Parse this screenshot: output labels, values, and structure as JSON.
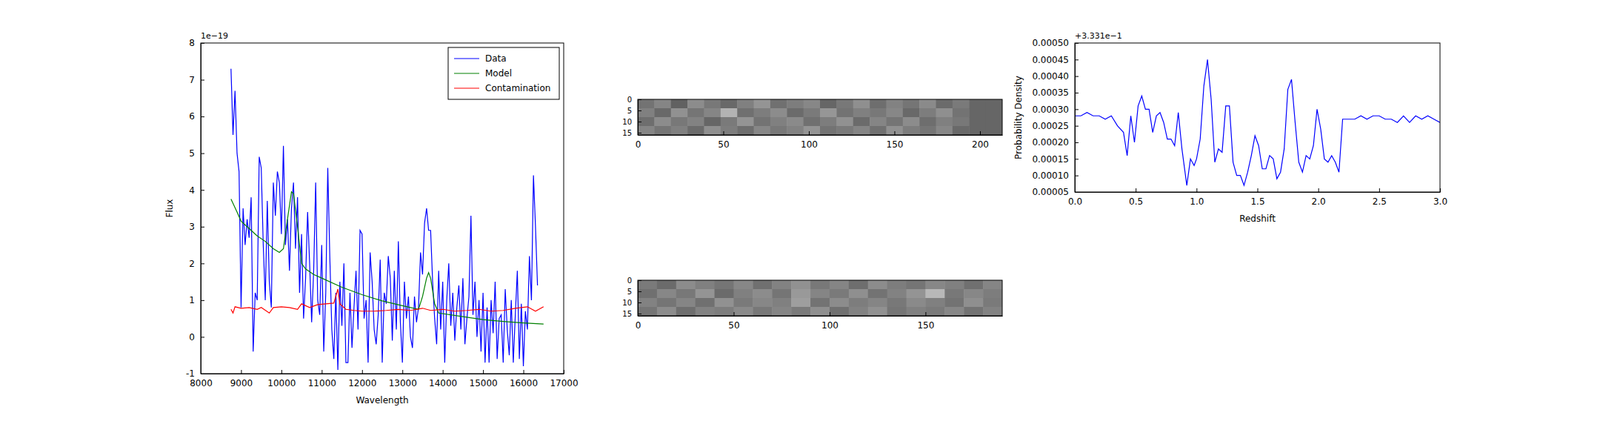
{
  "chart_data": [
    {
      "type": "line",
      "xlabel": "Wavelength",
      "ylabel": "Flux",
      "y_offset_text": "1e−19",
      "xlim": [
        8000,
        17000
      ],
      "xticks": [
        8000,
        9000,
        10000,
        11000,
        12000,
        13000,
        14000,
        15000,
        16000,
        17000
      ],
      "ylim": [
        -1,
        8
      ],
      "yticks": [
        -1,
        0,
        1,
        2,
        3,
        4,
        5,
        6,
        7,
        8
      ],
      "legend": "upper right",
      "series": [
        {
          "name": "Data",
          "color": "#0000ff",
          "x": [
            8750,
            8800,
            8850,
            8900,
            8950,
            9000,
            9050,
            9100,
            9150,
            9200,
            9250,
            9300,
            9350,
            9400,
            9450,
            9500,
            9550,
            9600,
            9650,
            9700,
            9750,
            9800,
            9850,
            9900,
            9950,
            10000,
            10050,
            10100,
            10150,
            10200,
            10250,
            10300,
            10350,
            10400,
            10450,
            10500,
            10550,
            10600,
            10650,
            10700,
            10750,
            10800,
            10850,
            10900,
            10950,
            11000,
            11050,
            11100,
            11150,
            11200,
            11250,
            11300,
            11350,
            11400,
            11450,
            11500,
            11550,
            11600,
            11650,
            11700,
            11750,
            11800,
            11850,
            11900,
            11950,
            12000,
            12050,
            12100,
            12150,
            12200,
            12250,
            12300,
            12350,
            12400,
            12450,
            12500,
            12550,
            12600,
            12650,
            12700,
            12750,
            12800,
            12850,
            12900,
            12950,
            13000,
            13050,
            13100,
            13150,
            13200,
            13250,
            13300,
            13350,
            13400,
            13450,
            13500,
            13550,
            13600,
            13650,
            13700,
            13750,
            13800,
            13850,
            13900,
            13950,
            14000,
            14050,
            14100,
            14150,
            14200,
            14250,
            14300,
            14350,
            14400,
            14450,
            14500,
            14550,
            14600,
            14650,
            14700,
            14750,
            14800,
            14850,
            14900,
            14950,
            15000,
            15050,
            15100,
            15150,
            15200,
            15250,
            15300,
            15350,
            15400,
            15450,
            15500,
            15550,
            15600,
            15650,
            15700,
            15750,
            15800,
            15850,
            15900,
            15950,
            16000,
            16050,
            16100,
            16150,
            16200,
            16250,
            16300,
            16350
          ],
          "values": [
            7.3,
            5.5,
            6.7,
            5.0,
            4.5,
            0.8,
            3.5,
            2.5,
            3.2,
            2.7,
            3.8,
            -0.4,
            1.2,
            1.0,
            4.9,
            4.6,
            2.5,
            1.0,
            3.7,
            1.5,
            0.8,
            4.2,
            3.3,
            4.5,
            4.2,
            2.8,
            5.2,
            2.5,
            3.2,
            1.8,
            3.5,
            4.2,
            2.4,
            3.8,
            1.2,
            2.8,
            0.5,
            1.6,
            3.4,
            2.0,
            0.4,
            1.8,
            4.2,
            1.0,
            0.6,
            2.5,
            -0.4,
            1.2,
            4.6,
            2.2,
            0.2,
            -0.6,
            1.2,
            -0.9,
            1.5,
            0.3,
            2.0,
            -0.7,
            -0.7,
            1.2,
            -0.3,
            0.8,
            1.8,
            0.2,
            2.9,
            2.8,
            0.5,
            1.0,
            -0.7,
            2.3,
            1.5,
            0.2,
            -0.2,
            0.6,
            2.1,
            -0.7,
            1.2,
            0.9,
            2.2,
            1.6,
            -0.1,
            1.8,
            0.2,
            2.6,
            0.4,
            -0.7,
            1.5,
            0.5,
            1.1,
            0.0,
            -0.3,
            1.1,
            0.4,
            0.8,
            2.3,
            1.7,
            3.1,
            3.5,
            2.9,
            2.9,
            1.5,
            0.5,
            -0.2,
            1.8,
            0.2,
            1.5,
            -0.7,
            1.0,
            2.0,
            0.3,
            1.2,
            -0.1,
            0.8,
            1.4,
            0.2,
            1.6,
            -0.2,
            0.5,
            1.1,
            3.3,
            0.6,
            1.5,
            0.0,
            1.0,
            -0.4,
            1.2,
            -0.7,
            0.8,
            -0.7,
            1.0,
            0.1,
            1.5,
            -0.6,
            0.5,
            0.6,
            -0.7,
            1.3,
            0.2,
            -0.5,
            1.0,
            -0.7,
            0.6,
            1.8,
            -0.6,
            0.9,
            -0.8,
            0.7,
            0.2,
            2.2,
            1.0,
            4.4,
            3.0,
            1.4
          ]
        },
        {
          "name": "Model",
          "color": "#008000",
          "x": [
            8750,
            8900,
            9000,
            9200,
            9400,
            9600,
            9800,
            9950,
            10050,
            10150,
            10250,
            10300,
            10400,
            10500,
            10600,
            10800,
            11000,
            11500,
            12000,
            12500,
            13000,
            13400,
            13500,
            13600,
            13650,
            13700,
            13800,
            13900,
            14500,
            15000,
            15500,
            16000,
            16500
          ],
          "values": [
            3.75,
            3.4,
            3.15,
            2.95,
            2.75,
            2.6,
            2.4,
            2.3,
            2.4,
            3.2,
            3.95,
            3.9,
            3.0,
            2.0,
            1.85,
            1.7,
            1.6,
            1.35,
            1.15,
            0.98,
            0.85,
            0.75,
            1.1,
            1.6,
            1.75,
            1.6,
            0.9,
            0.65,
            0.55,
            0.47,
            0.42,
            0.38,
            0.35
          ]
        },
        {
          "name": "Contamination",
          "color": "#ff0000",
          "x": [
            8750,
            8800,
            8850,
            9000,
            9200,
            9400,
            9500,
            9700,
            9800,
            10000,
            10200,
            10400,
            10500,
            10700,
            10900,
            11100,
            11300,
            11400,
            11450,
            11600,
            11800,
            12000,
            12300,
            12600,
            12900,
            13200,
            13500,
            13700,
            14000,
            14300,
            14600,
            14900,
            15200,
            15500,
            15800,
            16100,
            16300,
            16500
          ],
          "values": [
            0.75,
            0.65,
            0.82,
            0.78,
            0.8,
            0.75,
            0.8,
            0.65,
            0.8,
            0.82,
            0.8,
            0.75,
            0.9,
            0.8,
            0.88,
            0.9,
            0.92,
            1.3,
            0.9,
            0.75,
            0.72,
            0.7,
            0.7,
            0.72,
            0.75,
            0.72,
            0.78,
            0.72,
            0.75,
            0.7,
            0.72,
            0.75,
            0.7,
            0.72,
            0.78,
            0.82,
            0.7,
            0.82
          ]
        }
      ]
    },
    {
      "type": "heatmap",
      "xlim": [
        0,
        213
      ],
      "xticks": [
        0,
        50,
        100,
        150,
        200
      ],
      "ylim": [
        0,
        16
      ],
      "yticks": [
        0,
        5,
        10,
        15
      ],
      "zlim": [
        0,
        1
      ],
      "cells": [
        [
          0.45,
          0.52,
          0.38,
          0.55,
          0.47,
          0.41,
          0.5,
          0.58,
          0.44,
          0.49,
          0.53,
          0.4,
          0.47,
          0.56,
          0.43,
          0.51,
          0.46,
          0.54,
          0.42,
          0.48,
          0.4,
          0.4
        ],
        [
          0.5,
          0.41,
          0.57,
          0.46,
          0.52,
          0.7,
          0.44,
          0.49,
          0.55,
          0.42,
          0.48,
          0.59,
          0.45,
          0.5,
          0.47,
          0.53,
          0.41,
          0.49,
          0.56,
          0.45,
          0.4,
          0.4
        ],
        [
          0.43,
          0.55,
          0.47,
          0.51,
          0.4,
          0.48,
          0.58,
          0.45,
          0.5,
          0.54,
          0.44,
          0.49,
          0.57,
          0.42,
          0.52,
          0.46,
          0.55,
          0.43,
          0.5,
          0.47,
          0.4,
          0.4
        ],
        [
          0.52,
          0.46,
          0.5,
          0.42,
          0.56,
          0.49,
          0.43,
          0.53,
          0.47,
          0.51,
          0.58,
          0.45,
          0.48,
          0.52,
          0.44,
          0.57,
          0.49,
          0.46,
          0.53,
          0.41,
          0.4,
          0.4
        ]
      ]
    },
    {
      "type": "heatmap",
      "xlim": [
        0,
        190
      ],
      "xticks": [
        0,
        50,
        100,
        150
      ],
      "ylim": [
        0,
        16
      ],
      "yticks": [
        0,
        5,
        10,
        15
      ],
      "zlim": [
        0,
        1
      ],
      "cells": [
        [
          0.48,
          0.42,
          0.55,
          0.5,
          0.46,
          0.53,
          0.44,
          0.51,
          0.57,
          0.47,
          0.52,
          0.43,
          0.55,
          0.49,
          0.46,
          0.53,
          0.5,
          0.44,
          0.52
        ],
        [
          0.44,
          0.53,
          0.47,
          0.58,
          0.42,
          0.5,
          0.55,
          0.46,
          0.6,
          0.52,
          0.48,
          0.56,
          0.45,
          0.51,
          0.58,
          0.72,
          0.47,
          0.53,
          0.49
        ],
        [
          0.51,
          0.46,
          0.52,
          0.44,
          0.57,
          0.48,
          0.53,
          0.5,
          0.62,
          0.45,
          0.55,
          0.49,
          0.52,
          0.47,
          0.54,
          0.5,
          0.45,
          0.56,
          0.48
        ],
        [
          0.46,
          0.55,
          0.43,
          0.51,
          0.49,
          0.54,
          0.47,
          0.52,
          0.48,
          0.56,
          0.44,
          0.51,
          0.57,
          0.46,
          0.5,
          0.48,
          0.53,
          0.45,
          0.51
        ]
      ]
    },
    {
      "type": "line",
      "xlabel": "Redshift",
      "ylabel": "Probability Density",
      "y_offset_text": "+3.331e−1",
      "xlim": [
        0,
        3
      ],
      "xticks": [
        {
          "value": 0,
          "label": "0.0"
        },
        {
          "value": 0.5,
          "label": "0.5"
        },
        {
          "value": 1,
          "label": "1.0"
        },
        {
          "value": 1.5,
          "label": "1.5"
        },
        {
          "value": 2,
          "label": "2.0"
        },
        {
          "value": 2.5,
          "label": "2.5"
        },
        {
          "value": 3,
          "label": "3.0"
        }
      ],
      "ylim": [
        5e-05,
        0.0005
      ],
      "yticks": [
        {
          "value": 5e-05,
          "label": "0.00005"
        },
        {
          "value": 0.0001,
          "label": "0.00010"
        },
        {
          "value": 0.00015,
          "label": "0.00015"
        },
        {
          "value": 0.0002,
          "label": "0.00020"
        },
        {
          "value": 0.00025,
          "label": "0.00025"
        },
        {
          "value": 0.0003,
          "label": "0.00030"
        },
        {
          "value": 0.00035,
          "label": "0.00035"
        },
        {
          "value": 0.0004,
          "label": "0.00040"
        },
        {
          "value": 0.00045,
          "label": "0.00045"
        },
        {
          "value": 0.0005,
          "label": "0.00050"
        }
      ],
      "series": [
        {
          "color": "#0000ff",
          "x": [
            0,
            0.05,
            0.1,
            0.15,
            0.2,
            0.25,
            0.3,
            0.35,
            0.4,
            0.43,
            0.46,
            0.49,
            0.52,
            0.55,
            0.58,
            0.61,
            0.64,
            0.67,
            0.7,
            0.73,
            0.76,
            0.79,
            0.82,
            0.85,
            0.88,
            0.92,
            0.95,
            0.98,
            1.0,
            1.03,
            1.06,
            1.09,
            1.12,
            1.15,
            1.18,
            1.21,
            1.24,
            1.27,
            1.3,
            1.33,
            1.36,
            1.39,
            1.42,
            1.45,
            1.48,
            1.51,
            1.54,
            1.57,
            1.6,
            1.63,
            1.66,
            1.69,
            1.72,
            1.75,
            1.78,
            1.81,
            1.84,
            1.87,
            1.9,
            1.93,
            1.96,
            1.99,
            2.02,
            2.05,
            2.08,
            2.11,
            2.14,
            2.17,
            2.2,
            2.25,
            2.3,
            2.35,
            2.4,
            2.45,
            2.5,
            2.55,
            2.6,
            2.65,
            2.7,
            2.75,
            2.8,
            2.85,
            2.9,
            2.95,
            3.0
          ],
          "values": [
            0.00028,
            0.00028,
            0.00029,
            0.00028,
            0.00028,
            0.00027,
            0.00028,
            0.00025,
            0.00023,
            0.00016,
            0.00028,
            0.0002,
            0.00031,
            0.00034,
            0.0003,
            0.0003,
            0.00023,
            0.00028,
            0.00029,
            0.00026,
            0.00021,
            0.00021,
            0.00019,
            0.00029,
            0.00018,
            7e-05,
            0.00015,
            0.00013,
            0.00015,
            0.00021,
            0.00037,
            0.00045,
            0.00033,
            0.00014,
            0.00018,
            0.00017,
            0.00031,
            0.00031,
            0.00014,
            0.0001,
            0.0001,
            7e-05,
            0.00011,
            0.00016,
            0.00022,
            0.00019,
            0.00012,
            0.00012,
            0.00016,
            0.00015,
            9e-05,
            0.00011,
            0.00018,
            0.00036,
            0.00039,
            0.00026,
            0.00014,
            0.00011,
            0.00016,
            0.00015,
            0.00019,
            0.0003,
            0.00024,
            0.00015,
            0.00014,
            0.00016,
            0.00014,
            0.00011,
            0.00027,
            0.00027,
            0.00027,
            0.00028,
            0.00027,
            0.00028,
            0.00028,
            0.00027,
            0.00027,
            0.00026,
            0.00028,
            0.00026,
            0.00028,
            0.00027,
            0.00028,
            0.00027,
            0.00026
          ]
        }
      ]
    }
  ]
}
